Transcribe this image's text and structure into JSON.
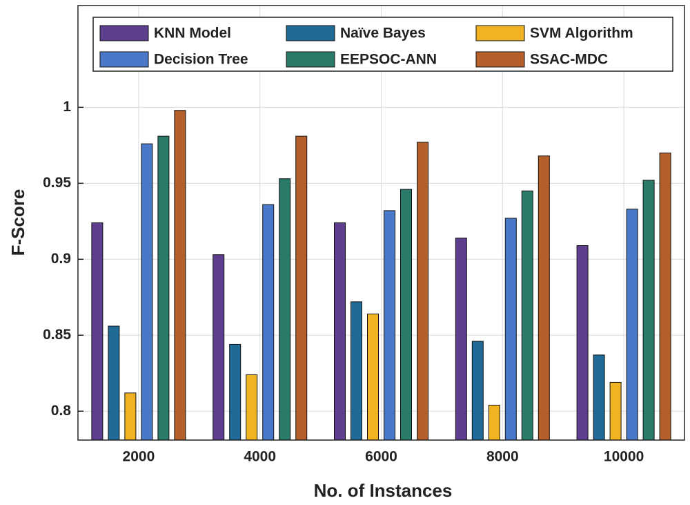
{
  "chart_data": {
    "type": "bar",
    "x_label": "No. of Instances",
    "y_label": "F-Score",
    "categories": [
      "2000",
      "4000",
      "6000",
      "8000",
      "10000"
    ],
    "series": [
      {
        "name": "KNN Model",
        "color": "#5e3f8f",
        "values": [
          0.924,
          0.903,
          0.924,
          0.914,
          0.909
        ]
      },
      {
        "name": "Naïve Bayes",
        "color": "#1f6a96",
        "values": [
          0.856,
          0.844,
          0.872,
          0.846,
          0.837
        ]
      },
      {
        "name": "SVM Algorithm",
        "color": "#f0b323",
        "values": [
          0.812,
          0.824,
          0.864,
          0.804,
          0.819
        ]
      },
      {
        "name": "Decision Tree",
        "color": "#4a78c8",
        "values": [
          0.976,
          0.936,
          0.932,
          0.927,
          0.933
        ]
      },
      {
        "name": "EEPSOC-ANN",
        "color": "#2a7a6a",
        "values": [
          0.981,
          0.953,
          0.946,
          0.945,
          0.952
        ]
      },
      {
        "name": "SSAC-MDC",
        "color": "#b5602a",
        "values": [
          0.998,
          0.981,
          0.977,
          0.968,
          0.97
        ]
      }
    ],
    "ylim": [
      0.781,
      1.067
    ],
    "yticks": [
      0.8,
      0.85,
      0.9,
      0.95,
      1
    ],
    "grid": true,
    "legend": "top"
  }
}
